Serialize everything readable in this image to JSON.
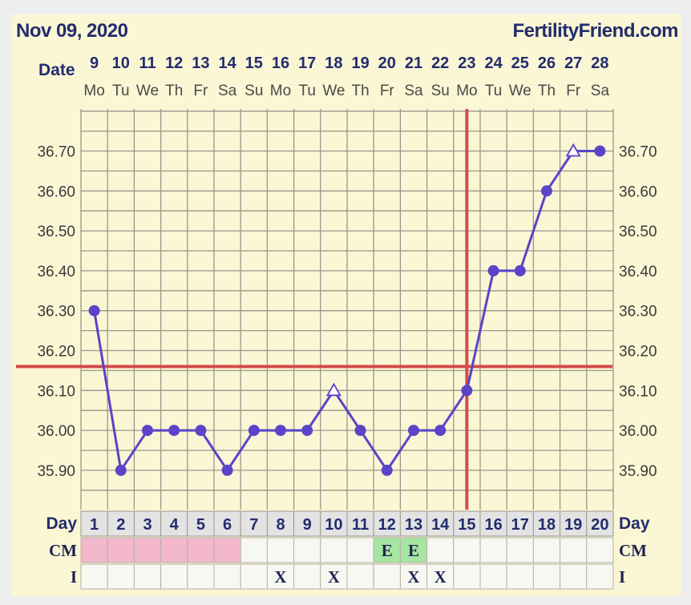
{
  "header": {
    "date_text": "Nov 09, 2020",
    "site_text": "FertilityFriend.com",
    "date_label": "Date"
  },
  "colors": {
    "page_background": "#fbf6d4",
    "grid": "#9a978d",
    "line": "#5a44c8",
    "marker": "#5a44c8",
    "coverline": "#d24c4c",
    "ovulation_line": "#d24c4c",
    "menses_cell": "#f3b8cb",
    "fertile_cell": "#a6e5a2",
    "empty_cell": "#f8f8f2",
    "day_row": "#e3e3e3"
  },
  "chart_data": {
    "type": "line",
    "title": "Nov 09, 2020",
    "subtitle": "FertilityFriend.com",
    "xlabel": "Date",
    "ylabel": "",
    "dates": [
      "9",
      "10",
      "11",
      "12",
      "13",
      "14",
      "15",
      "16",
      "17",
      "18",
      "19",
      "20",
      "21",
      "22",
      "23",
      "24",
      "25",
      "26",
      "27",
      "28"
    ],
    "weekdays": [
      "Mo",
      "Tu",
      "We",
      "Th",
      "Fr",
      "Sa",
      "Su",
      "Mo",
      "Tu",
      "We",
      "Th",
      "Fr",
      "Sa",
      "Su",
      "Mo",
      "Tu",
      "We",
      "Th",
      "Fr",
      "Sa"
    ],
    "cycle_days": [
      "1",
      "2",
      "3",
      "4",
      "5",
      "6",
      "7",
      "8",
      "9",
      "10",
      "11",
      "12",
      "13",
      "14",
      "15",
      "16",
      "17",
      "18",
      "19",
      "20"
    ],
    "ylim": [
      35.8,
      36.8
    ],
    "yticks": [
      "36.70",
      "36.60",
      "36.50",
      "36.40",
      "36.30",
      "36.20",
      "36.10",
      "36.00",
      "35.90"
    ],
    "series": [
      {
        "name": "temperature",
        "values": [
          36.3,
          35.9,
          36.0,
          36.0,
          36.0,
          35.9,
          36.0,
          36.0,
          36.0,
          36.1,
          36.0,
          35.9,
          36.0,
          36.0,
          36.1,
          36.4,
          36.4,
          36.6,
          36.7,
          36.7
        ],
        "markers": [
          "circle",
          "circle",
          "circle",
          "circle",
          "circle",
          "circle",
          "circle",
          "circle",
          "circle",
          "triangle",
          "circle",
          "circle",
          "circle",
          "circle",
          "circle",
          "circle",
          "circle",
          "circle",
          "triangle",
          "circle"
        ]
      }
    ],
    "coverline_value": 36.16,
    "ovulation_day": 15,
    "rows": [
      {
        "label": "CM",
        "cells": [
          "",
          "",
          "",
          "",
          "",
          "",
          "",
          "",
          "",
          "",
          "",
          "E",
          "E",
          "",
          "",
          "",
          "",
          "",
          "",
          ""
        ],
        "kinds": [
          "menses",
          "menses",
          "menses",
          "menses",
          "menses",
          "menses",
          "empty",
          "empty",
          "empty",
          "empty",
          "empty",
          "fertile",
          "fertile",
          "empty",
          "empty",
          "empty",
          "empty",
          "empty",
          "empty",
          "empty"
        ]
      },
      {
        "label": "I",
        "cells": [
          "",
          "",
          "",
          "",
          "",
          "",
          "",
          "X",
          "",
          "X",
          "",
          "",
          "X",
          "X",
          "",
          "",
          "",
          "",
          "",
          ""
        ],
        "kinds": [
          "empty",
          "empty",
          "empty",
          "empty",
          "empty",
          "empty",
          "empty",
          "empty",
          "empty",
          "empty",
          "empty",
          "empty",
          "empty",
          "empty",
          "empty",
          "empty",
          "empty",
          "empty",
          "empty",
          "empty"
        ]
      }
    ],
    "day_label": "Day"
  }
}
